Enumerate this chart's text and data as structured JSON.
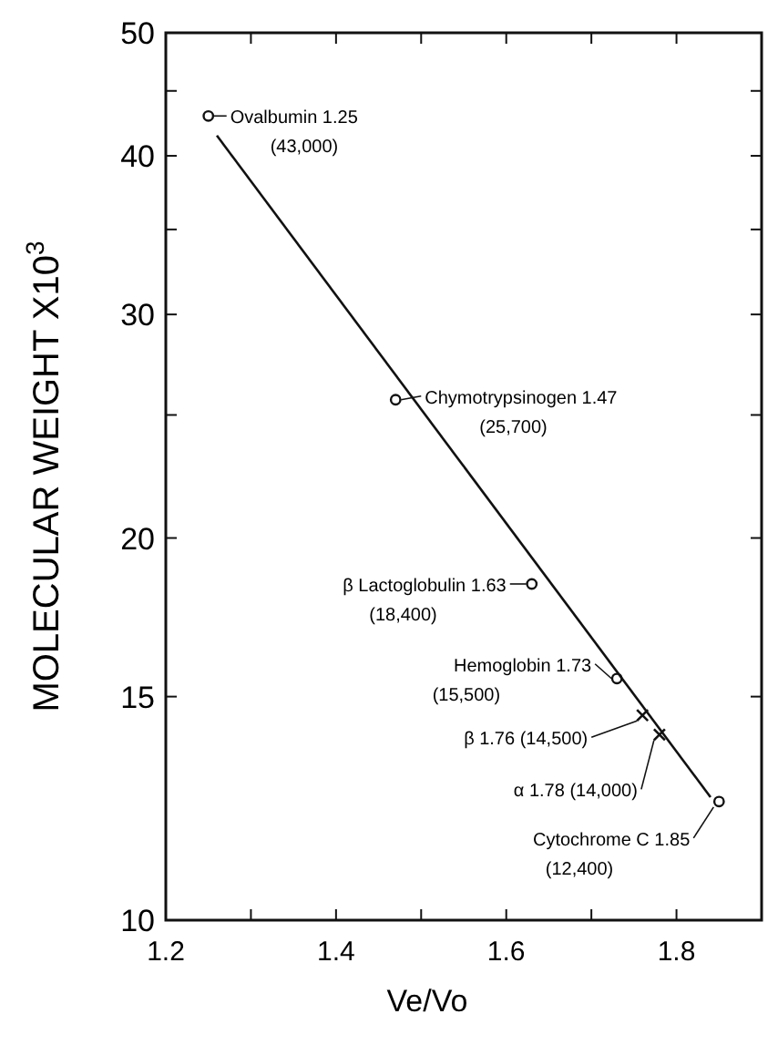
{
  "chart_data": {
    "type": "scatter",
    "xlabel": "Ve/Vo",
    "ylabel": "MOLECULAR WEIGHT X10$^{3}$",
    "log": "y",
    "xlim": [
      1.2,
      1.9
    ],
    "ylim": [
      10,
      50
    ],
    "xticks": [
      1.2,
      {
        "value": 1.3,
        "label": null
      },
      1.4,
      {
        "value": 1.5,
        "label": null
      },
      1.6,
      {
        "value": 1.7,
        "label": null
      },
      1.8
    ],
    "yticks": [
      10,
      15,
      20,
      {
        "value": 25,
        "label": null
      },
      30,
      {
        "value": 35,
        "label": null
      },
      40,
      {
        "value": 45,
        "label": null
      },
      50
    ],
    "grid": false,
    "series": [
      {
        "marker": "circle",
        "color": "#111111",
        "x": [
          1.25,
          1.47,
          1.63,
          1.73,
          1.85
        ],
        "values": [
          43,
          25.7,
          18.4,
          15.5,
          12.4
        ]
      },
      {
        "marker": "cross",
        "color": "#111111",
        "x": [
          1.76,
          1.78
        ],
        "values": [
          14.5,
          14
        ]
      },
      {
        "type": "line",
        "marker": "none",
        "color": "#111111",
        "x": [
          1.26,
          1.84
        ],
        "values": [
          41.5,
          12.5
        ]
      }
    ],
    "annotations": [
      {
        "text": "Ovalbumin 1.25\n(43,000)",
        "x": 1.25,
        "y": 43
      },
      {
        "text": "Chymotrypsinogen 1.47\n(25,700)",
        "x": 1.47,
        "y": 25.7
      },
      {
        "text": "β Lactoglobulin 1.63\n(18,400)",
        "x": 1.63,
        "y": 18.4
      },
      {
        "text": "Hemoglobin 1.73\n(15,500)",
        "x": 1.73,
        "y": 15.5
      },
      {
        "text": "β 1.76 (14,500)",
        "x": 1.76,
        "y": 14.5
      },
      {
        "text": "α 1.78 (14,000)",
        "x": 1.78,
        "y": 14
      },
      {
        "text": "Cytochrome C 1.85\n(12,400)",
        "x": 1.85,
        "y": 12.4
      }
    ]
  }
}
